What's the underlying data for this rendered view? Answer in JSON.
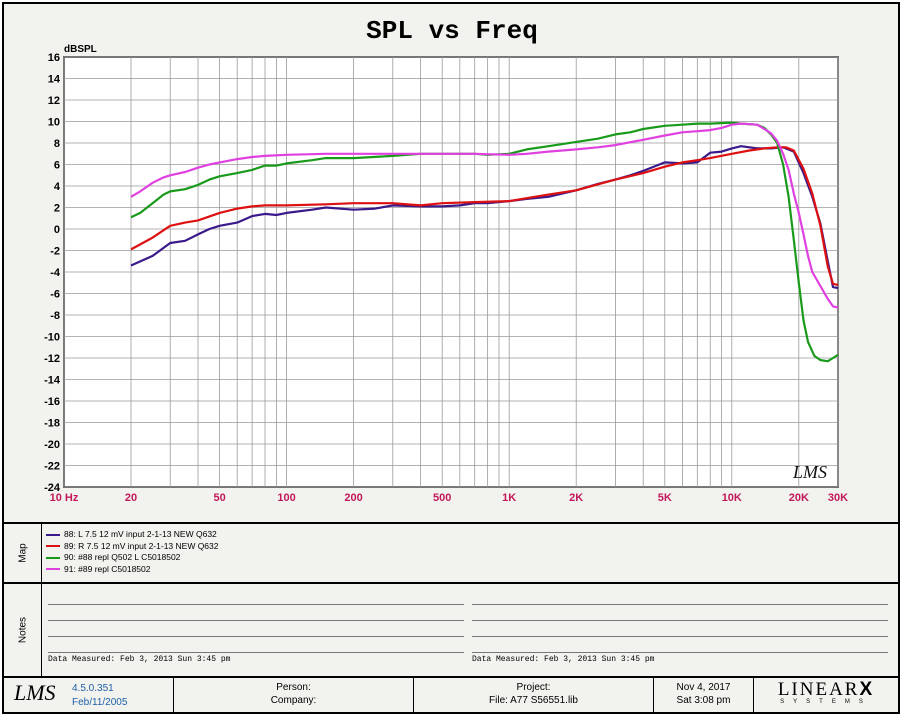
{
  "chart_data": {
    "type": "line",
    "title": "SPL vs Freq",
    "ylabel": "dBSPL",
    "xscale": "log",
    "xlim": [
      10,
      30000
    ],
    "ylim": [
      -24,
      16
    ],
    "grid": true,
    "x_tick_labels": [
      {
        "x": 10,
        "label": "10 Hz"
      },
      {
        "x": 20,
        "label": "20"
      },
      {
        "x": 50,
        "label": "50"
      },
      {
        "x": 100,
        "label": "100"
      },
      {
        "x": 200,
        "label": "200"
      },
      {
        "x": 500,
        "label": "500"
      },
      {
        "x": 1000,
        "label": "1K"
      },
      {
        "x": 2000,
        "label": "2K"
      },
      {
        "x": 5000,
        "label": "5K"
      },
      {
        "x": 10000,
        "label": "10K"
      },
      {
        "x": 20000,
        "label": "20K"
      },
      {
        "x": 30000,
        "label": "30K"
      }
    ],
    "y_ticks": [
      16,
      14,
      12,
      10,
      8,
      6,
      4,
      2,
      0,
      -2,
      -4,
      -6,
      -8,
      -10,
      -12,
      -14,
      -16,
      -18,
      -20,
      -22,
      -24
    ],
    "watermark": "LMS",
    "series": [
      {
        "name": "88: L 7.5  12 mV input  2-1-13  NEW Q632",
        "color": "#3a1a8a",
        "points": [
          [
            20,
            -3.4
          ],
          [
            25,
            -2.5
          ],
          [
            30,
            -1.3
          ],
          [
            35,
            -1.1
          ],
          [
            40,
            -0.5
          ],
          [
            45,
            0
          ],
          [
            50,
            0.3
          ],
          [
            60,
            0.6
          ],
          [
            70,
            1.2
          ],
          [
            80,
            1.4
          ],
          [
            90,
            1.3
          ],
          [
            100,
            1.5
          ],
          [
            130,
            1.8
          ],
          [
            150,
            2
          ],
          [
            200,
            1.8
          ],
          [
            250,
            1.9
          ],
          [
            300,
            2.2
          ],
          [
            400,
            2.1
          ],
          [
            500,
            2.1
          ],
          [
            600,
            2.2
          ],
          [
            700,
            2.4
          ],
          [
            800,
            2.4
          ],
          [
            1000,
            2.6
          ],
          [
            1200,
            2.8
          ],
          [
            1500,
            3
          ],
          [
            2000,
            3.6
          ],
          [
            2500,
            4.2
          ],
          [
            3000,
            4.6
          ],
          [
            3500,
            5
          ],
          [
            4000,
            5.4
          ],
          [
            5000,
            6.2
          ],
          [
            6000,
            6.1
          ],
          [
            7000,
            6.2
          ],
          [
            8000,
            7.1
          ],
          [
            9000,
            7.2
          ],
          [
            10000,
            7.5
          ],
          [
            11000,
            7.7
          ],
          [
            13000,
            7.5
          ],
          [
            15000,
            7.5
          ],
          [
            17000,
            7.6
          ],
          [
            19000,
            7.2
          ],
          [
            21000,
            5.2
          ],
          [
            23000,
            3
          ],
          [
            25000,
            0.5
          ],
          [
            27000,
            -3
          ],
          [
            28500,
            -5.4
          ],
          [
            30000,
            -5.5
          ]
        ]
      },
      {
        "name": "89: R 7.5  12 mV input  2-1-13  NEW Q632",
        "color": "#dd1111",
        "points": [
          [
            20,
            -1.9
          ],
          [
            25,
            -0.8
          ],
          [
            30,
            0.3
          ],
          [
            35,
            0.6
          ],
          [
            40,
            0.8
          ],
          [
            50,
            1.5
          ],
          [
            60,
            1.9
          ],
          [
            70,
            2.1
          ],
          [
            80,
            2.2
          ],
          [
            100,
            2.2
          ],
          [
            150,
            2.3
          ],
          [
            200,
            2.4
          ],
          [
            300,
            2.4
          ],
          [
            400,
            2.2
          ],
          [
            500,
            2.4
          ],
          [
            700,
            2.5
          ],
          [
            1000,
            2.6
          ],
          [
            1500,
            3.2
          ],
          [
            2000,
            3.6
          ],
          [
            3000,
            4.6
          ],
          [
            4000,
            5.2
          ],
          [
            5000,
            5.8
          ],
          [
            6000,
            6.2
          ],
          [
            7000,
            6.4
          ],
          [
            8000,
            6.6
          ],
          [
            10000,
            7
          ],
          [
            12000,
            7.3
          ],
          [
            14000,
            7.5
          ],
          [
            16000,
            7.6
          ],
          [
            17500,
            7.6
          ],
          [
            19000,
            7.3
          ],
          [
            21000,
            5.6
          ],
          [
            23000,
            3.3
          ],
          [
            25000,
            0.3
          ],
          [
            27000,
            -3.5
          ],
          [
            28500,
            -5.1
          ],
          [
            30000,
            -5.2
          ]
        ]
      },
      {
        "name": "90: #88  repl Q502 L C5018502",
        "color": "#1a9a1a",
        "points": [
          [
            20,
            1.1
          ],
          [
            22,
            1.5
          ],
          [
            25,
            2.4
          ],
          [
            28,
            3.2
          ],
          [
            30,
            3.5
          ],
          [
            35,
            3.7
          ],
          [
            40,
            4.1
          ],
          [
            45,
            4.6
          ],
          [
            50,
            4.9
          ],
          [
            60,
            5.2
          ],
          [
            70,
            5.5
          ],
          [
            80,
            5.9
          ],
          [
            90,
            5.9
          ],
          [
            100,
            6.1
          ],
          [
            130,
            6.4
          ],
          [
            150,
            6.6
          ],
          [
            200,
            6.6
          ],
          [
            300,
            6.8
          ],
          [
            400,
            7
          ],
          [
            500,
            7
          ],
          [
            700,
            7
          ],
          [
            800,
            6.9
          ],
          [
            1000,
            7
          ],
          [
            1200,
            7.4
          ],
          [
            1500,
            7.7
          ],
          [
            2000,
            8.1
          ],
          [
            2500,
            8.4
          ],
          [
            3000,
            8.8
          ],
          [
            3500,
            9
          ],
          [
            4000,
            9.3
          ],
          [
            5000,
            9.6
          ],
          [
            6000,
            9.7
          ],
          [
            7000,
            9.8
          ],
          [
            8000,
            9.8
          ],
          [
            10000,
            9.9
          ],
          [
            11000,
            9.8
          ],
          [
            13000,
            9.7
          ],
          [
            14000,
            9.4
          ],
          [
            15000,
            8.8
          ],
          [
            16000,
            8
          ],
          [
            17000,
            6
          ],
          [
            18000,
            3
          ],
          [
            19000,
            -1
          ],
          [
            20000,
            -5
          ],
          [
            21000,
            -8.5
          ],
          [
            22000,
            -10.5
          ],
          [
            23500,
            -11.8
          ],
          [
            25000,
            -12.2
          ],
          [
            27000,
            -12.3
          ],
          [
            28500,
            -12
          ],
          [
            30000,
            -11.7
          ]
        ]
      },
      {
        "name": "91: #89  repl C5018502",
        "color": "#e040e0",
        "points": [
          [
            20,
            3
          ],
          [
            22,
            3.5
          ],
          [
            25,
            4.3
          ],
          [
            28,
            4.8
          ],
          [
            30,
            5
          ],
          [
            35,
            5.3
          ],
          [
            40,
            5.7
          ],
          [
            45,
            6
          ],
          [
            50,
            6.2
          ],
          [
            60,
            6.5
          ],
          [
            70,
            6.7
          ],
          [
            80,
            6.8
          ],
          [
            100,
            6.9
          ],
          [
            150,
            7
          ],
          [
            200,
            7
          ],
          [
            300,
            7
          ],
          [
            400,
            7
          ],
          [
            500,
            7
          ],
          [
            700,
            7
          ],
          [
            1000,
            6.9
          ],
          [
            1200,
            7
          ],
          [
            1500,
            7.2
          ],
          [
            2000,
            7.4
          ],
          [
            2500,
            7.6
          ],
          [
            3000,
            7.8
          ],
          [
            4000,
            8.3
          ],
          [
            5000,
            8.7
          ],
          [
            6000,
            9
          ],
          [
            7000,
            9.1
          ],
          [
            8000,
            9.2
          ],
          [
            9000,
            9.4
          ],
          [
            10000,
            9.7
          ],
          [
            11000,
            9.8
          ],
          [
            13000,
            9.7
          ],
          [
            14000,
            9.3
          ],
          [
            15000,
            8.9
          ],
          [
            16000,
            8.2
          ],
          [
            17000,
            7
          ],
          [
            18000,
            5.5
          ],
          [
            19000,
            3.3
          ],
          [
            20000,
            1.5
          ],
          [
            21000,
            -0.5
          ],
          [
            22000,
            -2.5
          ],
          [
            23000,
            -4
          ],
          [
            25000,
            -5.3
          ],
          [
            27000,
            -6.5
          ],
          [
            28500,
            -7.2
          ],
          [
            30000,
            -7.3
          ]
        ]
      }
    ]
  },
  "map": {
    "label": "Map"
  },
  "notes": {
    "label": "Notes",
    "data_measured_left": "Data Measured: Feb  3, 2013  Sun  3:45 pm",
    "data_measured_right": "Data Measured: Feb  3, 2013  Sun  3:45 pm"
  },
  "footer": {
    "logo": "LMS",
    "version": "4.5.0.351",
    "version_date": "Feb/11/2005",
    "person_label": "Person:",
    "company_label": "Company:",
    "project_label": "Project:",
    "file_label": "File: A77 S56551.lib",
    "date": "Nov  4, 2017",
    "time": "Sat  3:08 pm",
    "brand": "LINEAR",
    "brand_x": "X",
    "brand_sub": "SYSTEMS"
  }
}
